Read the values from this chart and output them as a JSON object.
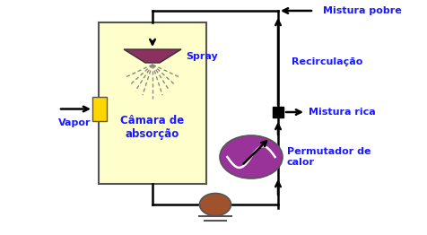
{
  "chamber_color": "#FFFFCC",
  "chamber_edge": "#555555",
  "chamber_label": "Câmara de\nabsorção",
  "spray_label": "Spray",
  "vapor_label": "Vapor",
  "mistura_pobre_label": "Mistura pobre",
  "recirculacao_label": "Recirculação",
  "mistura_rica_label": "Mistura rica",
  "permutador_label": "Permutador de\ncalor",
  "pump_color": "#A0522D",
  "exchanger_color": "#993399",
  "spray_cone_color": "#8B3060",
  "yellow_rect_color": "#FFD700",
  "arrow_color": "#000000",
  "bg_color": "#ffffff",
  "line_color": "#000000",
  "text_color": "#1a1aff",
  "lw": 1.8
}
